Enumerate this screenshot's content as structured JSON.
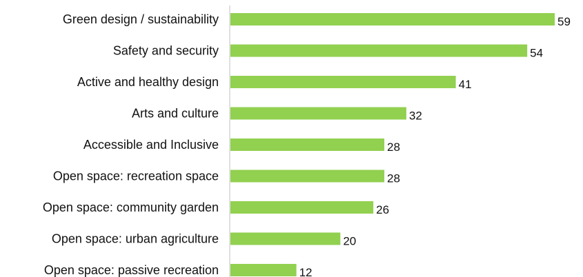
{
  "chart_data": {
    "type": "bar",
    "orientation": "horizontal",
    "title": "",
    "xlabel": "",
    "ylabel": "",
    "categories": [
      "Green design / sustainability",
      "Safety and security",
      "Active and healthy design",
      "Arts and culture",
      "Accessible and Inclusive",
      "Open space: recreation space",
      "Open space: community garden",
      "Open space: urban agriculture",
      "Open space: passive recreation"
    ],
    "values": [
      59,
      54,
      41,
      32,
      28,
      28,
      26,
      20,
      12
    ],
    "xlim": [
      0,
      60
    ],
    "bar_color": "#92d050",
    "grid": false,
    "data_labels": true
  }
}
